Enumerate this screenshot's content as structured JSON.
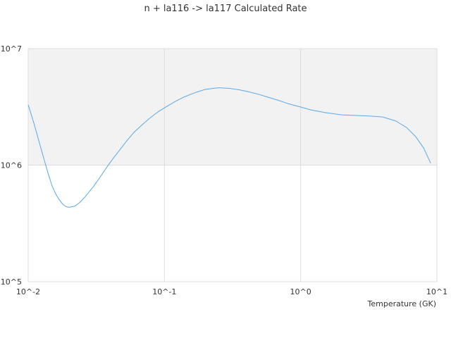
{
  "chart_data": {
    "type": "line",
    "title": "n + la116 -> la117 Calculated Rate",
    "xlabel": "Temperature (GK)",
    "ylabel": "",
    "x_scale": "log",
    "y_scale": "log",
    "xlim": [
      0.01,
      10
    ],
    "ylim": [
      100000,
      10000000
    ],
    "x_ticks": [
      {
        "value": 0.01,
        "label": "10^-2"
      },
      {
        "value": 0.1,
        "label": "10^-1"
      },
      {
        "value": 1,
        "label": "10^0"
      },
      {
        "value": 10,
        "label": "10^1"
      }
    ],
    "y_ticks": [
      {
        "value": 100000,
        "label": "10^5"
      },
      {
        "value": 1000000,
        "label": "10^6"
      },
      {
        "value": 10000000,
        "label": "10^7"
      }
    ],
    "band_colors": [
      "#ffffff",
      "#f2f2f2"
    ],
    "grid_color": "#dddddd",
    "series": [
      {
        "color": "#5aa9e6",
        "x": [
          0.01,
          0.011,
          0.012,
          0.013,
          0.014,
          0.015,
          0.016,
          0.017,
          0.018,
          0.019,
          0.02,
          0.022,
          0.024,
          0.026,
          0.028,
          0.03,
          0.034,
          0.038,
          0.042,
          0.047,
          0.053,
          0.06,
          0.07,
          0.08,
          0.09,
          0.1,
          0.12,
          0.14,
          0.16,
          0.18,
          0.2,
          0.25,
          0.3,
          0.35,
          0.4,
          0.5,
          0.6,
          0.7,
          0.8,
          1.0,
          1.2,
          1.5,
          2.0,
          2.5,
          3.0,
          3.5,
          4.0,
          5.0,
          6.0,
          7.0,
          8.0,
          9.0
        ],
        "y": [
          3300000,
          2300000,
          1600000,
          1150000,
          850000,
          660000,
          560000,
          500000,
          460000,
          440000,
          435000,
          445000,
          480000,
          530000,
          590000,
          650000,
          800000,
          970000,
          1140000,
          1350000,
          1620000,
          1920000,
          2270000,
          2590000,
          2870000,
          3100000,
          3520000,
          3850000,
          4100000,
          4300000,
          4470000,
          4610000,
          4560000,
          4440000,
          4300000,
          4030000,
          3770000,
          3570000,
          3380000,
          3150000,
          2970000,
          2830000,
          2700000,
          2670000,
          2650000,
          2620000,
          2590000,
          2390000,
          2100000,
          1750000,
          1400000,
          1040000
        ]
      }
    ]
  }
}
